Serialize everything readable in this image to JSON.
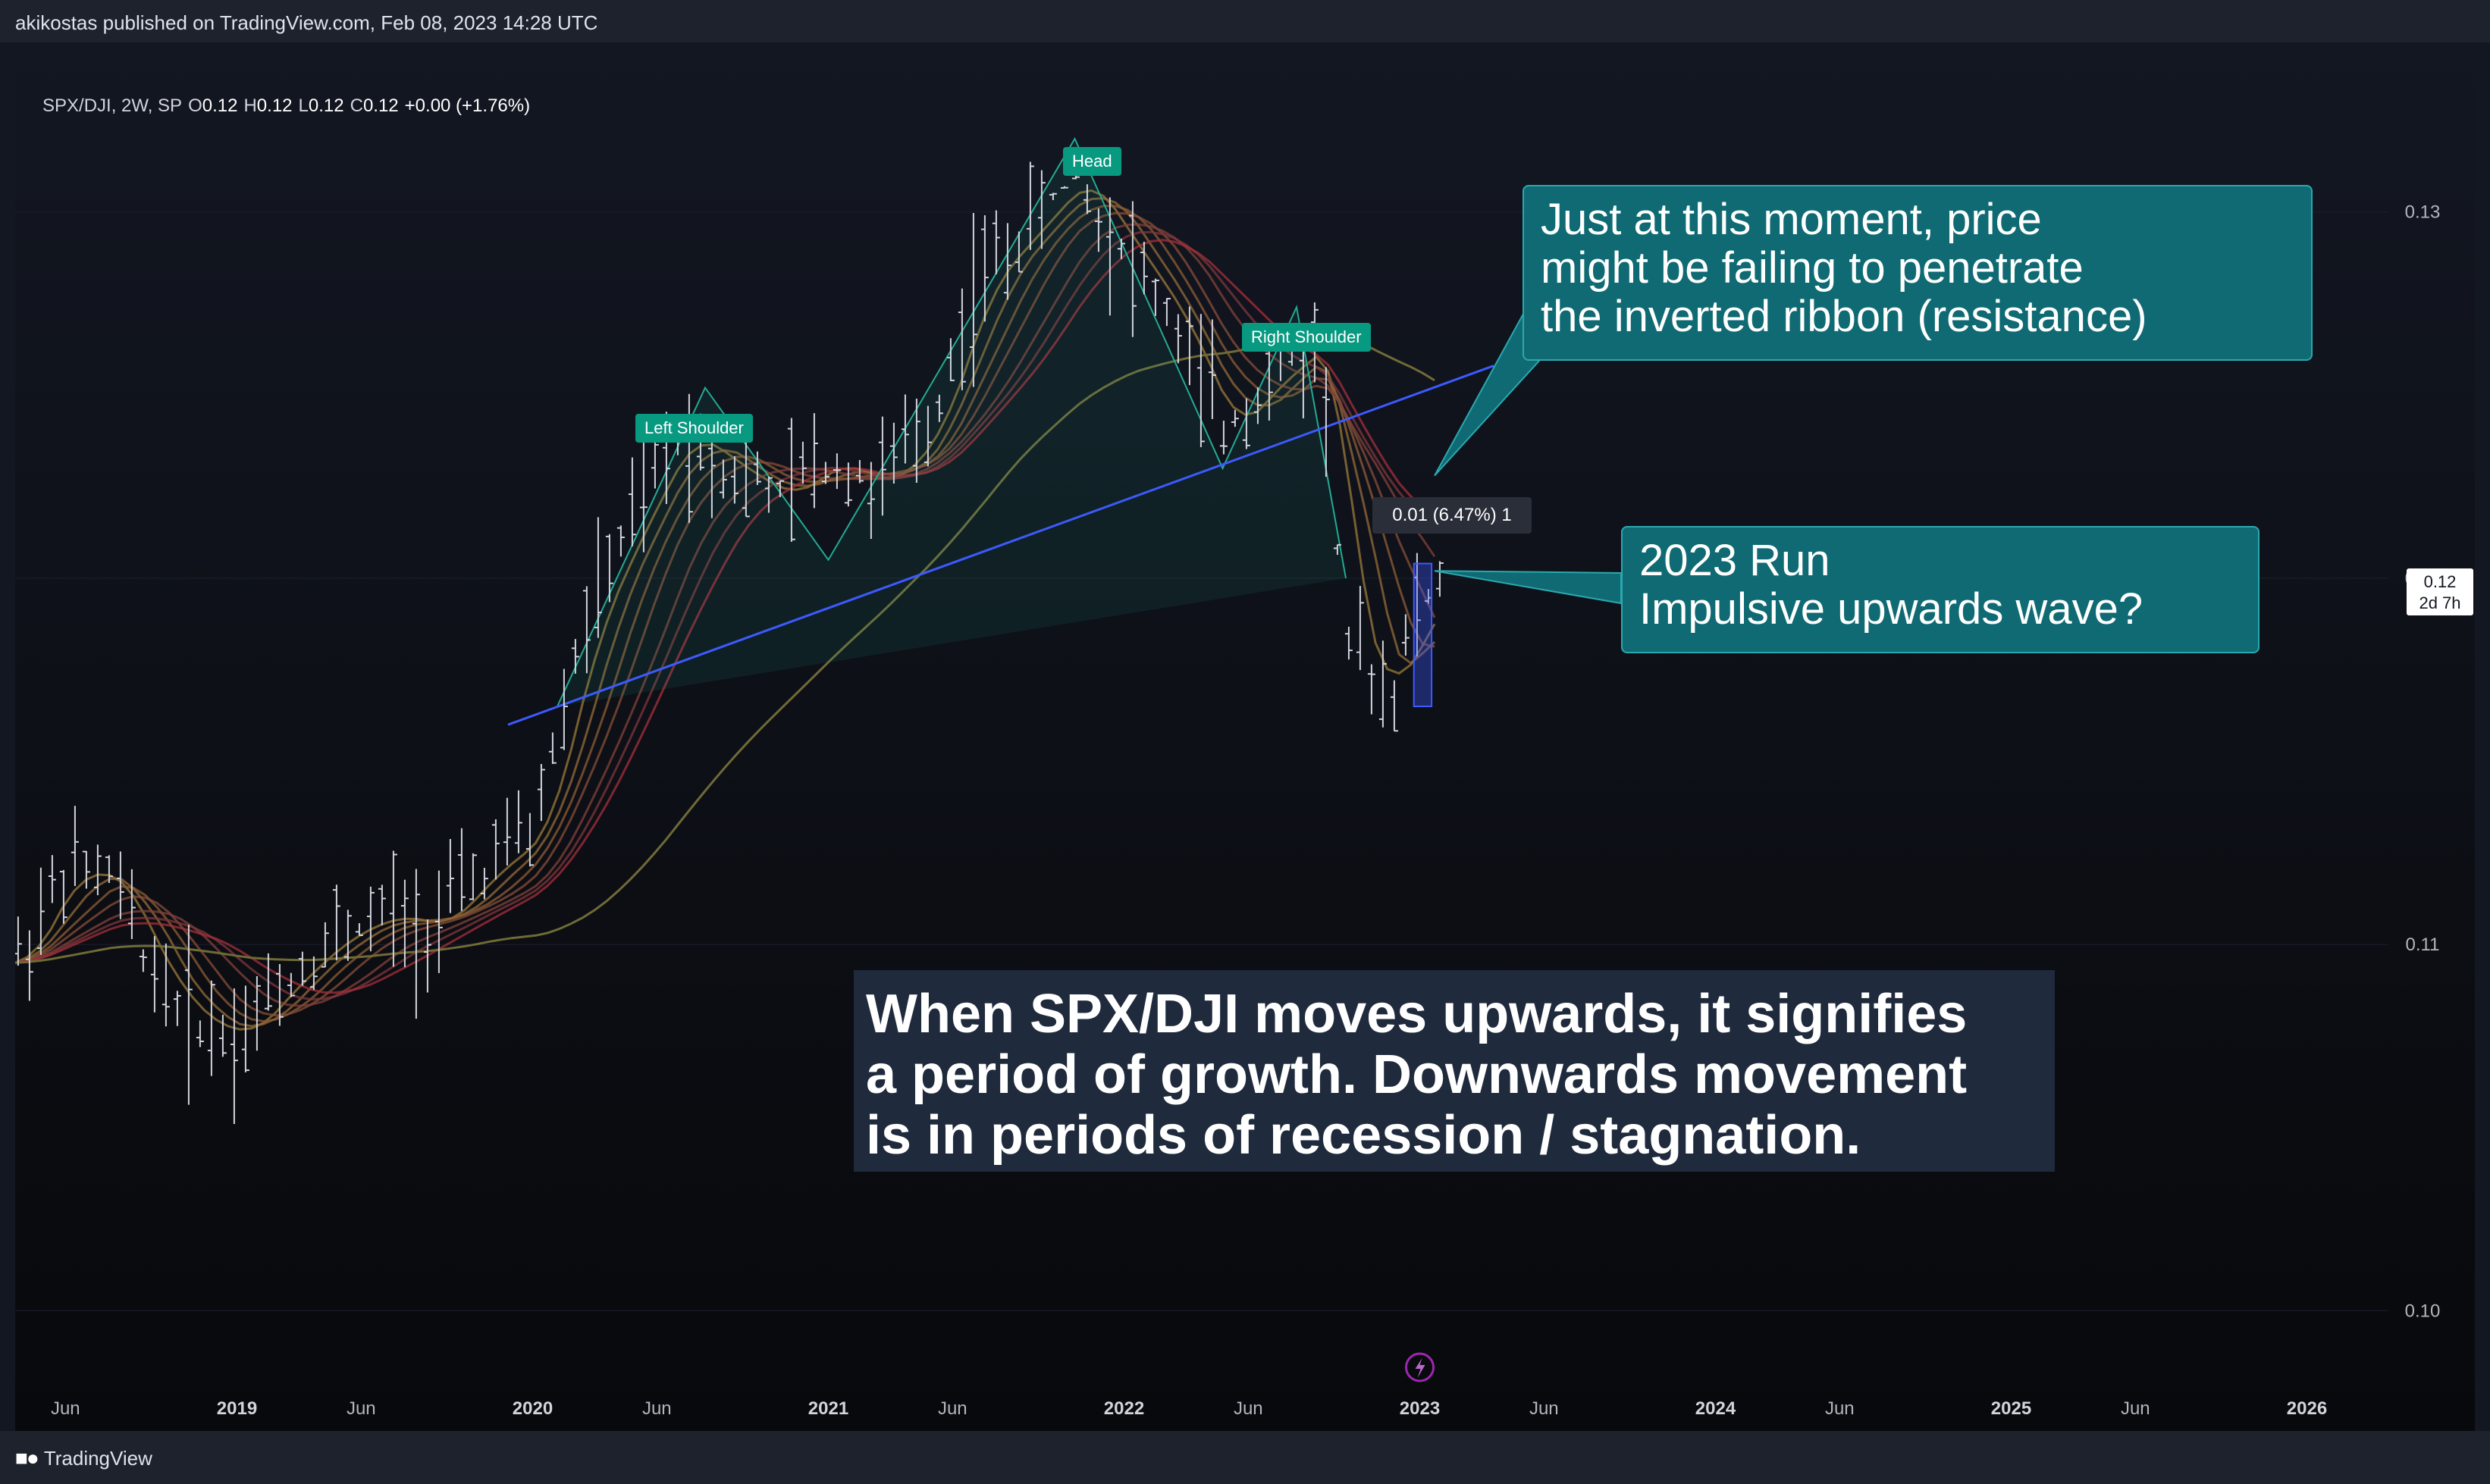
{
  "header": {
    "publish_line": "akikostas published on TradingView.com, Feb 08, 2023 14:28 UTC"
  },
  "symbol": {
    "name": "SPX/DJI, 2W, SP",
    "o_label": "O",
    "o_value": "0.12",
    "h_label": "H",
    "h_value": "0.12",
    "l_label": "L",
    "l_value": "0.12",
    "c_label": "C",
    "c_value": "0.12",
    "change": "+0.00 (+1.76%)"
  },
  "annotations": {
    "resistance_note": "Just at this moment, price\nmight be failing to penetrate\nthe inverted ribbon (resistance)",
    "run_note": "2023 Run\nImpulsive upwards wave?",
    "caption": "When SPX/DJI moves upwards, it signifies\na period of growth. Downwards movement\nis in periods of recession / stagnation.",
    "measure": "0.01 (6.47%) 1",
    "current_price": "0.12",
    "countdown": "2d 7h"
  },
  "chart_data": {
    "type": "bar",
    "title": "",
    "y_axis": {
      "ticks": [
        "0.13",
        "0.12",
        "0.11",
        "0.10"
      ],
      "range": [
        0.098,
        0.1338
      ]
    },
    "x_axis": {
      "ticks": [
        "Jun",
        "2019",
        "Jun",
        "2020",
        "Jun",
        "2021",
        "Jun",
        "2022",
        "Jun",
        "2023",
        "Jun",
        "2024",
        "Jun",
        "2025",
        "Jun",
        "2026"
      ]
    },
    "pattern_labels": [
      "Left Shoulder",
      "Head",
      "Right Shoulder"
    ],
    "pattern_points": [
      {
        "date": "2020-02",
        "value": 0.1165,
        "label": ""
      },
      {
        "date": "2020-08",
        "value": 0.1252,
        "label": "Left Shoulder"
      },
      {
        "date": "2021-01",
        "value": 0.1205,
        "label": ""
      },
      {
        "date": "2021-11",
        "value": 0.132,
        "label": "Head"
      },
      {
        "date": "2022-05",
        "value": 0.123,
        "label": ""
      },
      {
        "date": "2022-08",
        "value": 0.1274,
        "label": "Right Shoulder"
      },
      {
        "date": "2022-10",
        "value": 0.12,
        "label": ""
      }
    ],
    "neckline": {
      "start": {
        "date": "2019-12",
        "value": 0.116
      },
      "end": {
        "date": "2023-04",
        "value": 0.1258
      }
    },
    "price_series": [
      {
        "date": "2018-04",
        "value": 0.1095
      },
      {
        "date": "2018-06",
        "value": 0.112
      },
      {
        "date": "2018-08",
        "value": 0.1118
      },
      {
        "date": "2018-09",
        "value": 0.11
      },
      {
        "date": "2018-11",
        "value": 0.108
      },
      {
        "date": "2019-01",
        "value": 0.1075
      },
      {
        "date": "2019-03",
        "value": 0.109
      },
      {
        "date": "2019-05",
        "value": 0.1102
      },
      {
        "date": "2019-07",
        "value": 0.1108
      },
      {
        "date": "2019-09",
        "value": 0.1105
      },
      {
        "date": "2019-11",
        "value": 0.112
      },
      {
        "date": "2020-01",
        "value": 0.113
      },
      {
        "date": "2020-03",
        "value": 0.1185
      },
      {
        "date": "2020-05",
        "value": 0.1215
      },
      {
        "date": "2020-07",
        "value": 0.124
      },
      {
        "date": "2020-09",
        "value": 0.123
      },
      {
        "date": "2020-11",
        "value": 0.1222
      },
      {
        "date": "2021-01",
        "value": 0.1232
      },
      {
        "date": "2021-03",
        "value": 0.1225
      },
      {
        "date": "2021-05",
        "value": 0.124
      },
      {
        "date": "2021-07",
        "value": 0.128
      },
      {
        "date": "2021-09",
        "value": 0.1295
      },
      {
        "date": "2021-11",
        "value": 0.131
      },
      {
        "date": "2022-01",
        "value": 0.129
      },
      {
        "date": "2022-03",
        "value": 0.127
      },
      {
        "date": "2022-05",
        "value": 0.124
      },
      {
        "date": "2022-07",
        "value": 0.1255
      },
      {
        "date": "2022-09",
        "value": 0.1265
      },
      {
        "date": "2022-10",
        "value": 0.118
      },
      {
        "date": "2022-12",
        "value": 0.117
      },
      {
        "date": "2023-01",
        "value": 0.1195
      }
    ],
    "colors": {
      "background": "#131722",
      "bars": "#d1d4dc",
      "neckline": "#3d5afe",
      "pattern": "#22ab94",
      "ribbon_fast": "#9a6b3a",
      "ribbon_slow": "#a52f3a",
      "long_ma": "#6f6a36",
      "note_fill": "#0f6a73",
      "highlight": "#3d5afe"
    }
  }
}
